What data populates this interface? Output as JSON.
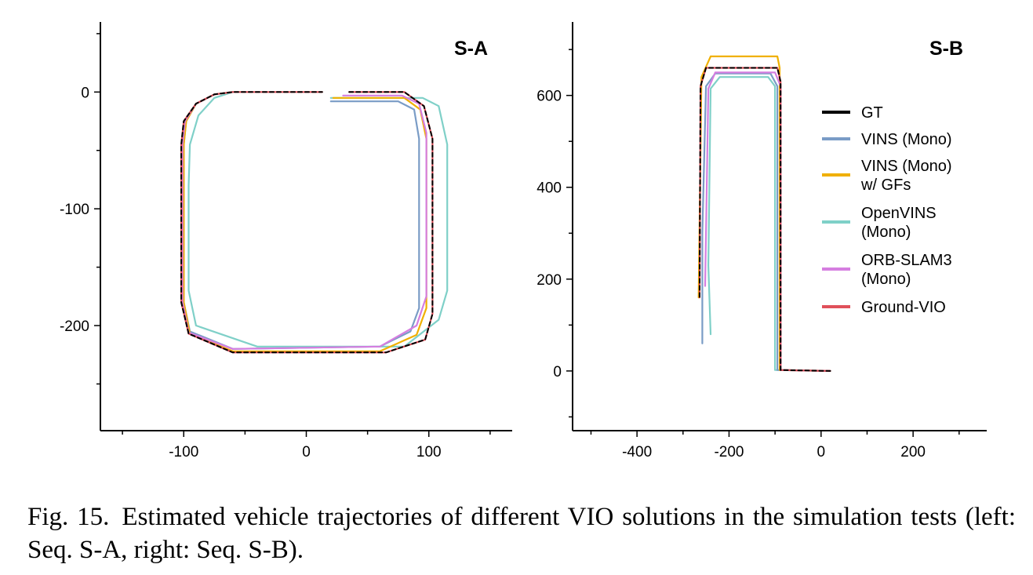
{
  "colors": {
    "GT": "#000000",
    "VINS (Mono)": "#7a9cc6",
    "VINS (Mono) w/ GFs": "#f0b000",
    "OpenVINS (Mono)": "#7fd0c8",
    "ORB-SLAM3 (Mono)": "#d57ee0",
    "Ground-VIO": "#e0505a"
  },
  "caption": {
    "label": "Fig. 15.",
    "text": "Estimated vehicle trajectories of different VIO solutions in the simulation tests (left: Seq. S-A, right: Seq. S-B)."
  },
  "chart_data": [
    {
      "type": "line",
      "title": "S-A",
      "xlim": [
        -168,
        168
      ],
      "ylim": [
        -290,
        60
      ],
      "xticks": [
        -100,
        0,
        100
      ],
      "yticks": [
        0,
        -100,
        -200
      ],
      "grid": false,
      "series": [
        {
          "name": "OpenVINS (Mono)",
          "x": [
            20,
            95,
            108,
            115,
            115,
            108,
            80,
            -40,
            -90,
            -96,
            -96,
            -95,
            -88,
            -75,
            -60
          ],
          "y": [
            -5,
            -5,
            -12,
            -45,
            -170,
            -195,
            -218,
            -218,
            -200,
            -170,
            -80,
            -45,
            -20,
            -5,
            0
          ]
        },
        {
          "name": "VINS (Mono)",
          "x": [
            20,
            75,
            88,
            92,
            92,
            85,
            60,
            -60,
            -95,
            -100,
            -100,
            -98,
            -90,
            -75,
            -60
          ],
          "y": [
            -8,
            -8,
            -15,
            -40,
            -185,
            -205,
            -218,
            -220,
            -205,
            -180,
            -45,
            -25,
            -10,
            -2,
            0
          ]
        },
        {
          "name": "VINS (Mono) w/ GFs",
          "x": [
            22,
            80,
            93,
            98,
            98,
            90,
            60,
            -60,
            -95,
            -100,
            -100,
            -98,
            -90,
            -75,
            -60
          ],
          "y": [
            -5,
            -5,
            -15,
            -40,
            -185,
            -208,
            -222,
            -222,
            -207,
            -180,
            -45,
            -25,
            -10,
            -2,
            0
          ]
        },
        {
          "name": "ORB-SLAM3 (Mono)",
          "x": [
            30,
            78,
            92,
            98,
            98,
            90,
            60,
            -60,
            -96,
            -101,
            -101,
            -99,
            -90,
            -75,
            -60
          ],
          "y": [
            -3,
            -3,
            -10,
            -35,
            -175,
            -200,
            -218,
            -220,
            -206,
            -180,
            -45,
            -25,
            -10,
            -2,
            0
          ]
        },
        {
          "name": "Ground-VIO",
          "x": [
            35,
            80,
            96,
            103,
            103,
            97,
            65,
            -60,
            -96,
            -102,
            -102,
            -100,
            -90,
            -75,
            -60,
            13
          ],
          "y": [
            0,
            0,
            -12,
            -40,
            -190,
            -212,
            -223,
            -223,
            -207,
            -180,
            -45,
            -25,
            -10,
            -2,
            0,
            0
          ]
        },
        {
          "name": "GT",
          "x": [
            35,
            80,
            96,
            103,
            103,
            97,
            65,
            -60,
            -96,
            -102,
            -102,
            -100,
            -90,
            -75,
            -60,
            13
          ],
          "y": [
            0,
            0,
            -12,
            -40,
            -190,
            -212,
            -223,
            -223,
            -207,
            -180,
            -45,
            -25,
            -10,
            -2,
            0,
            0
          ]
        }
      ]
    },
    {
      "type": "line",
      "title": "S-B",
      "xlim": [
        -540,
        360
      ],
      "ylim": [
        -130,
        760
      ],
      "xticks": [
        -400,
        -200,
        0,
        200
      ],
      "yticks": [
        0,
        200,
        400,
        600
      ],
      "grid": false,
      "legend": "right",
      "series": [
        {
          "name": "GT",
          "x": [
            20,
            -88,
            -88,
            -95,
            -250,
            -262,
            -264
          ],
          "y": [
            0,
            2,
            630,
            660,
            660,
            620,
            160
          ]
        },
        {
          "name": "VINS (Mono)",
          "x": [
            20,
            -95,
            -95,
            -110,
            -230,
            -250,
            -258,
            -258
          ],
          "y": [
            0,
            2,
            620,
            648,
            648,
            620,
            300,
            60
          ]
        },
        {
          "name": "VINS (Mono) w/ GFs",
          "x": [
            20,
            -90,
            -90,
            -95,
            -240,
            -260,
            -266
          ],
          "y": [
            0,
            2,
            660,
            685,
            685,
            640,
            160
          ]
        },
        {
          "name": "OpenVINS (Mono)",
          "x": [
            20,
            -100,
            -100,
            -115,
            -220,
            -240,
            -245,
            -240
          ],
          "y": [
            0,
            2,
            620,
            640,
            640,
            615,
            230,
            80
          ]
        },
        {
          "name": "ORB-SLAM3 (Mono)",
          "x": [
            20,
            -88,
            -88,
            -100,
            -230,
            -245,
            -252
          ],
          "y": [
            0,
            2,
            620,
            650,
            650,
            615,
            185
          ]
        },
        {
          "name": "Ground-VIO",
          "x": [
            20,
            -88,
            -88,
            -95,
            -250,
            -262,
            -264
          ],
          "y": [
            0,
            2,
            630,
            660,
            660,
            620,
            160
          ]
        }
      ]
    }
  ],
  "legend": [
    {
      "lines": [
        "GT"
      ],
      "color": "#000000"
    },
    {
      "lines": [
        "VINS (Mono)"
      ],
      "color": "#7a9cc6"
    },
    {
      "lines": [
        "VINS (Mono)",
        "w/ GFs"
      ],
      "color": "#f0b000"
    },
    {
      "lines": [
        "OpenVINS",
        "(Mono)"
      ],
      "color": "#7fd0c8"
    },
    {
      "lines": [
        "ORB-SLAM3",
        "(Mono)"
      ],
      "color": "#d57ee0"
    },
    {
      "lines": [
        "Ground-VIO"
      ],
      "color": "#e0505a"
    }
  ]
}
